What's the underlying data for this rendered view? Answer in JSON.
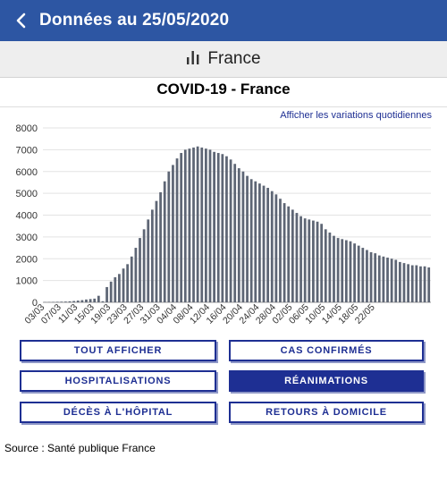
{
  "header": {
    "title": "Données au 25/05/2020",
    "back_icon": "chevron-left-icon"
  },
  "region": {
    "label": "France",
    "icon": "bar-chart-icon"
  },
  "chart_title": "COVID-19 - France",
  "variations_link": "Afficher les variations quotidiennes",
  "buttons": {
    "show_all": "TOUT AFFICHER",
    "confirmed": "CAS CONFIRMÉS",
    "hospitalisations": "HOSPITALISATIONS",
    "reanimations": "RÉANIMATIONS",
    "deaths_hospital": "DÉCÈS À L'HÔPITAL",
    "home_returns": "RETOURS À DOMICILE"
  },
  "source": "Source : Santé publique France",
  "colors": {
    "header_bg": "#2d56a3",
    "bar": "#5e6675",
    "button": "#1e2f93"
  },
  "chart_data": {
    "type": "bar",
    "title": "COVID-19 - France",
    "series": [
      {
        "name": "RÉANIMATIONS",
        "values": [
          12,
          15,
          20,
          25,
          30,
          35,
          45,
          60,
          80,
          100,
          130,
          150,
          170,
          300,
          50,
          700,
          950,
          1150,
          1300,
          1550,
          1750,
          2100,
          2500,
          2950,
          3350,
          3800,
          4250,
          4650,
          5050,
          5550,
          6000,
          6300,
          6600,
          6850,
          7000,
          7050,
          7100,
          7150,
          7100,
          7050,
          7000,
          6900,
          6850,
          6800,
          6700,
          6550,
          6350,
          6150,
          6000,
          5800,
          5650,
          5550,
          5450,
          5350,
          5250,
          5100,
          4950,
          4750,
          4550,
          4400,
          4250,
          4100,
          3950,
          3850,
          3800,
          3750,
          3700,
          3600,
          3350,
          3200,
          3050,
          2950,
          2900,
          2850,
          2800,
          2700,
          2600,
          2500,
          2400,
          2300,
          2250,
          2150,
          2100,
          2050,
          2000,
          1950,
          1850,
          1800,
          1750,
          1700,
          1700,
          1650,
          1650,
          1600
        ]
      }
    ],
    "x_tick_labels": [
      "03/03",
      "07/03",
      "11/03",
      "15/03",
      "19/03",
      "23/03",
      "27/03",
      "31/03",
      "04/04",
      "08/04",
      "12/04",
      "16/04",
      "20/04",
      "24/04",
      "28/04",
      "02/05",
      "06/05",
      "10/05",
      "14/05",
      "18/05",
      "22/05"
    ],
    "x_tick_every": 4,
    "y_ticks": [
      0,
      1000,
      2000,
      3000,
      4000,
      5000,
      6000,
      7000,
      8000
    ],
    "ylim": [
      0,
      8000
    ],
    "grid": true,
    "legend": "none"
  }
}
